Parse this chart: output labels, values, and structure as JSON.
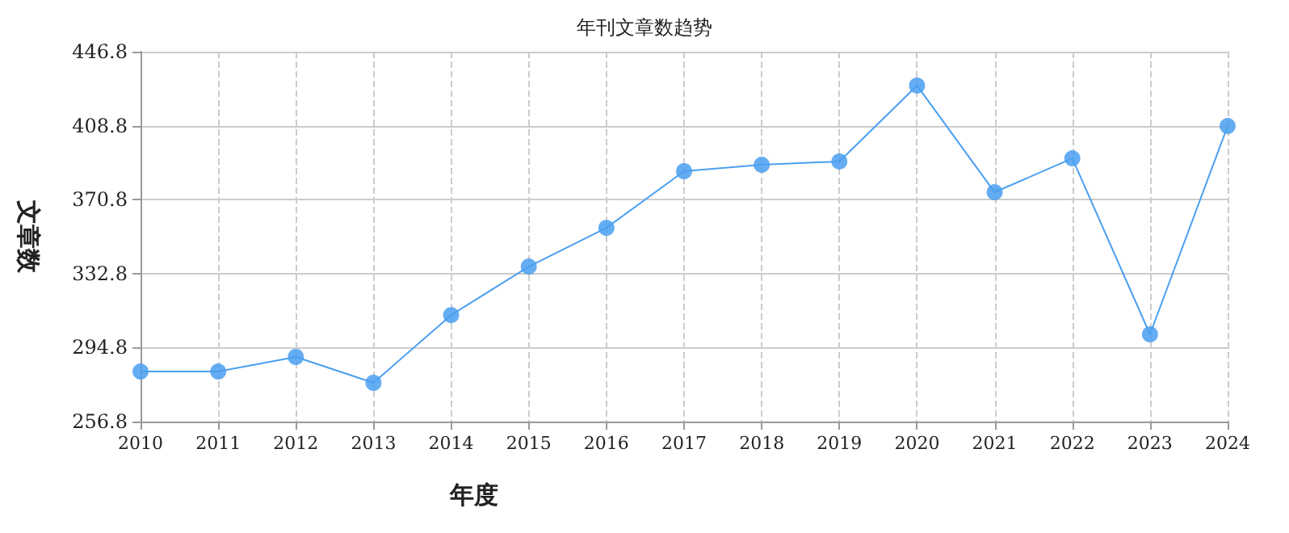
{
  "chart_data": {
    "type": "line",
    "title": "年刊文章数趋势",
    "xlabel": "年度",
    "ylabel": "文章数",
    "categories": [
      "2010",
      "2011",
      "2012",
      "2013",
      "2014",
      "2015",
      "2016",
      "2017",
      "2018",
      "2019",
      "2020",
      "2021",
      "2022",
      "2023",
      "2024"
    ],
    "series": [
      {
        "color": "#4a9ff0",
        "values": [
          282.5,
          282.5,
          290,
          276.7,
          311.5,
          336.4,
          356.3,
          385.4,
          388.7,
          390.4,
          429.4,
          374.6,
          392,
          301.6,
          408.6
        ]
      }
    ],
    "ylim": [
      256.8,
      446.8
    ],
    "yticks": [
      256.8,
      294.8,
      332.8,
      370.8,
      408.8,
      446.8
    ],
    "grid": true,
    "marker": "circle",
    "line_style": "solid"
  }
}
